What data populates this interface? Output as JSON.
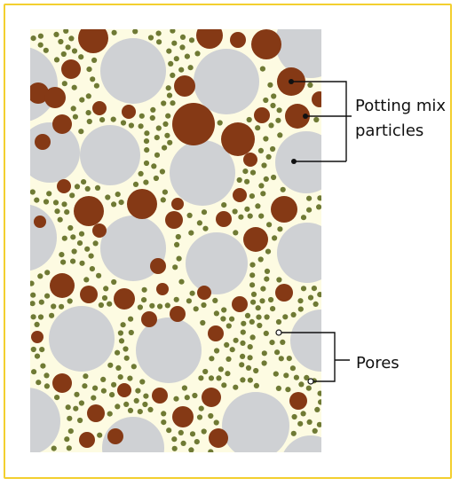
{
  "labels": {
    "particles": "Potting mix\nparticles",
    "pores": "Pores"
  },
  "colors": {
    "frame": "#f3cf2f",
    "background": "#fdfbe2",
    "large_particle": "#cfd1d4",
    "medium_particle": "#853915",
    "small_particle": "#6f7a34",
    "pore_marker": "#ffffff",
    "leader_line": "#111111"
  }
}
